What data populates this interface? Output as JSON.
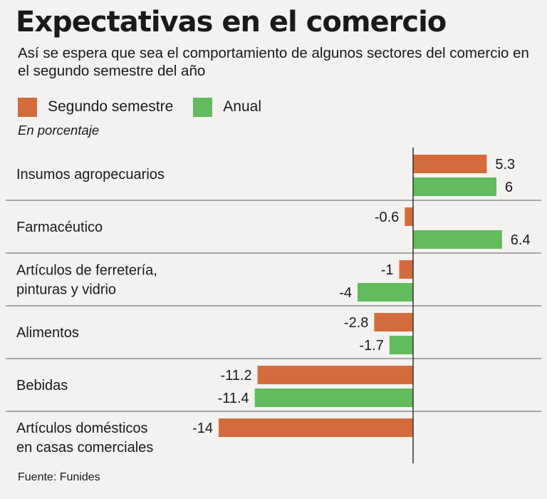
{
  "title": "Expectativas en el comercio",
  "subtitle": "Así se espera que sea el comportamiento de algunos sectores del comercio en el segundo semestre del año",
  "unit_label": "En porcentaje",
  "source": "Fuente: Funides",
  "colors": {
    "segundo_semestre": "#d46b3c",
    "anual": "#62bb5c",
    "grid": "#7a7a7a",
    "background": "#f3f2f1"
  },
  "chart_data": {
    "type": "bar",
    "orientation": "horizontal",
    "legend_placement": "top-left",
    "grid": true,
    "xlim": [
      -14,
      6.4
    ],
    "categories": [
      [
        "Insumos agropecuarios"
      ],
      [
        "Farmacéutico"
      ],
      [
        "Artículos de ferretería,",
        "pinturas y vidrio"
      ],
      [
        "Alimentos"
      ],
      [
        "Bebidas"
      ],
      [
        "Artículos domésticos",
        "en casas comerciales"
      ]
    ],
    "series": [
      {
        "name": "Segundo semestre",
        "values": [
          5.3,
          -0.6,
          -1,
          -2.8,
          -11.2,
          -14
        ],
        "labels": [
          "5.3",
          "-0.6",
          "-1",
          "-2.8",
          "-11.2",
          "-14"
        ]
      },
      {
        "name": "Anual",
        "values": [
          6,
          6.4,
          -4,
          -1.7,
          -11.4,
          null
        ],
        "labels": [
          "6",
          "6.4",
          "-4",
          "-1.7",
          "-11.4",
          ""
        ]
      }
    ]
  }
}
